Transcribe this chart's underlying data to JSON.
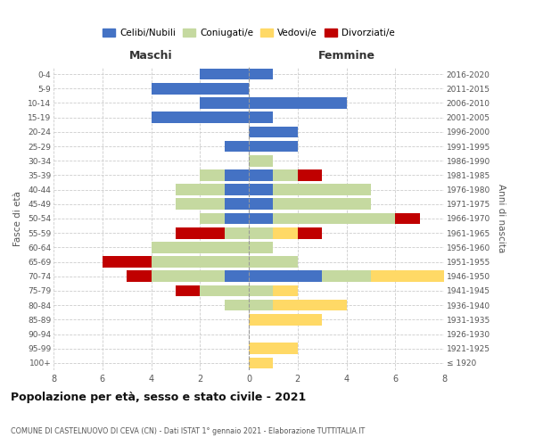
{
  "age_groups": [
    "100+",
    "95-99",
    "90-94",
    "85-89",
    "80-84",
    "75-79",
    "70-74",
    "65-69",
    "60-64",
    "55-59",
    "50-54",
    "45-49",
    "40-44",
    "35-39",
    "30-34",
    "25-29",
    "20-24",
    "15-19",
    "10-14",
    "5-9",
    "0-4"
  ],
  "birth_years": [
    "≤ 1920",
    "1921-1925",
    "1926-1930",
    "1931-1935",
    "1936-1940",
    "1941-1945",
    "1946-1950",
    "1951-1955",
    "1956-1960",
    "1961-1965",
    "1966-1970",
    "1971-1975",
    "1976-1980",
    "1981-1985",
    "1986-1990",
    "1991-1995",
    "1996-2000",
    "2001-2005",
    "2006-2010",
    "2011-2015",
    "2016-2020"
  ],
  "maschi_celibi": [
    0,
    0,
    0,
    0,
    0,
    0,
    1,
    0,
    0,
    0,
    1,
    1,
    1,
    1,
    0,
    1,
    0,
    4,
    2,
    4,
    2
  ],
  "maschi_coniugati": [
    0,
    0,
    0,
    0,
    1,
    2,
    3,
    4,
    4,
    1,
    1,
    2,
    2,
    1,
    0,
    0,
    0,
    0,
    0,
    0,
    0
  ],
  "maschi_vedovi": [
    0,
    0,
    0,
    0,
    0,
    0,
    0,
    0,
    0,
    0,
    0,
    0,
    0,
    0,
    0,
    0,
    0,
    0,
    0,
    0,
    0
  ],
  "maschi_divorziati": [
    0,
    0,
    0,
    0,
    0,
    1,
    1,
    2,
    0,
    2,
    0,
    0,
    0,
    0,
    0,
    0,
    0,
    0,
    0,
    0,
    0
  ],
  "femmine_celibi": [
    0,
    0,
    0,
    0,
    0,
    0,
    3,
    0,
    0,
    0,
    1,
    1,
    1,
    1,
    0,
    2,
    2,
    1,
    4,
    0,
    1
  ],
  "femmine_coniugati": [
    0,
    0,
    0,
    0,
    1,
    1,
    2,
    2,
    1,
    1,
    5,
    4,
    4,
    1,
    1,
    0,
    0,
    0,
    0,
    0,
    0
  ],
  "femmine_vedovi": [
    1,
    2,
    0,
    3,
    3,
    1,
    3,
    0,
    0,
    1,
    0,
    0,
    0,
    0,
    0,
    0,
    0,
    0,
    0,
    0,
    0
  ],
  "femmine_divorziati": [
    0,
    0,
    0,
    0,
    0,
    0,
    0,
    0,
    0,
    1,
    1,
    0,
    0,
    1,
    0,
    0,
    0,
    0,
    0,
    0,
    0
  ],
  "color_celibi": "#4472c4",
  "color_coniugati": "#c5d9a0",
  "color_vedovi": "#ffd966",
  "color_divorziati": "#c00000",
  "xlim": 8,
  "title": "Popolazione per età, sesso e stato civile - 2021",
  "subtitle": "COMUNE DI CASTELNUOVO DI CEVA (CN) - Dati ISTAT 1° gennaio 2021 - Elaborazione TUTTITALIA.IT",
  "ylabel_left": "Fasce di età",
  "ylabel_right": "Anni di nascita",
  "xlabel_left": "Maschi",
  "xlabel_right": "Femmine",
  "background_color": "#ffffff",
  "grid_color": "#cccccc"
}
